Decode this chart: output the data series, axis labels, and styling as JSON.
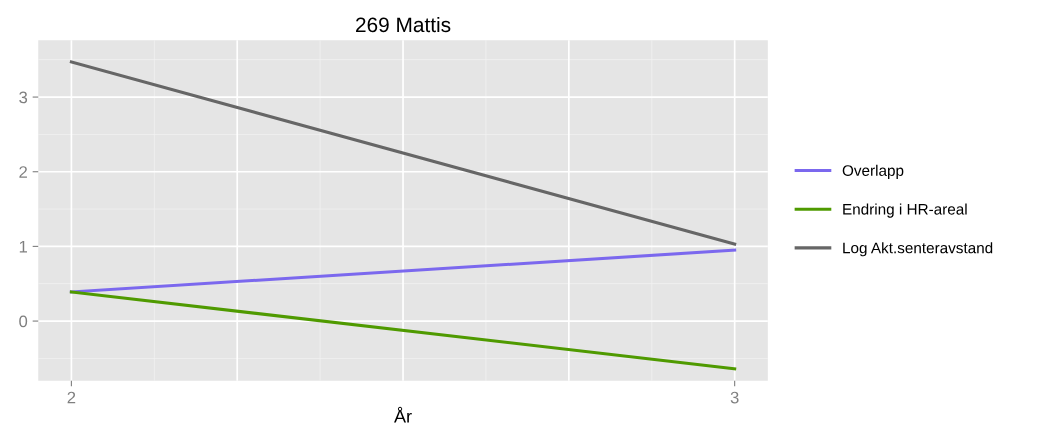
{
  "chart_data": {
    "type": "line",
    "title": "269 Mattis",
    "xlabel": "År",
    "x": [
      2,
      3
    ],
    "series": [
      {
        "name": "Overlapp",
        "color": "#7b68ee",
        "values": [
          0.39,
          0.95
        ]
      },
      {
        "name": "Endring i HR-areal",
        "color": "#4f9a00",
        "values": [
          0.39,
          -0.64
        ]
      },
      {
        "name": "Log Akt.senteravstand",
        "color": "#666666",
        "values": [
          3.47,
          1.03
        ]
      }
    ],
    "xlim": [
      1.95,
      3.05
    ],
    "ylim": [
      -0.8,
      3.76
    ],
    "xticks": [
      2,
      {
        "value": 2.25,
        "label": null
      },
      {
        "value": 2.5,
        "label": null
      },
      {
        "value": 2.75,
        "label": null
      },
      3
    ],
    "yticks": [
      0,
      1,
      2,
      3
    ],
    "grid": true,
    "legend": "right",
    "marker": "none",
    "line_style": "solid"
  }
}
